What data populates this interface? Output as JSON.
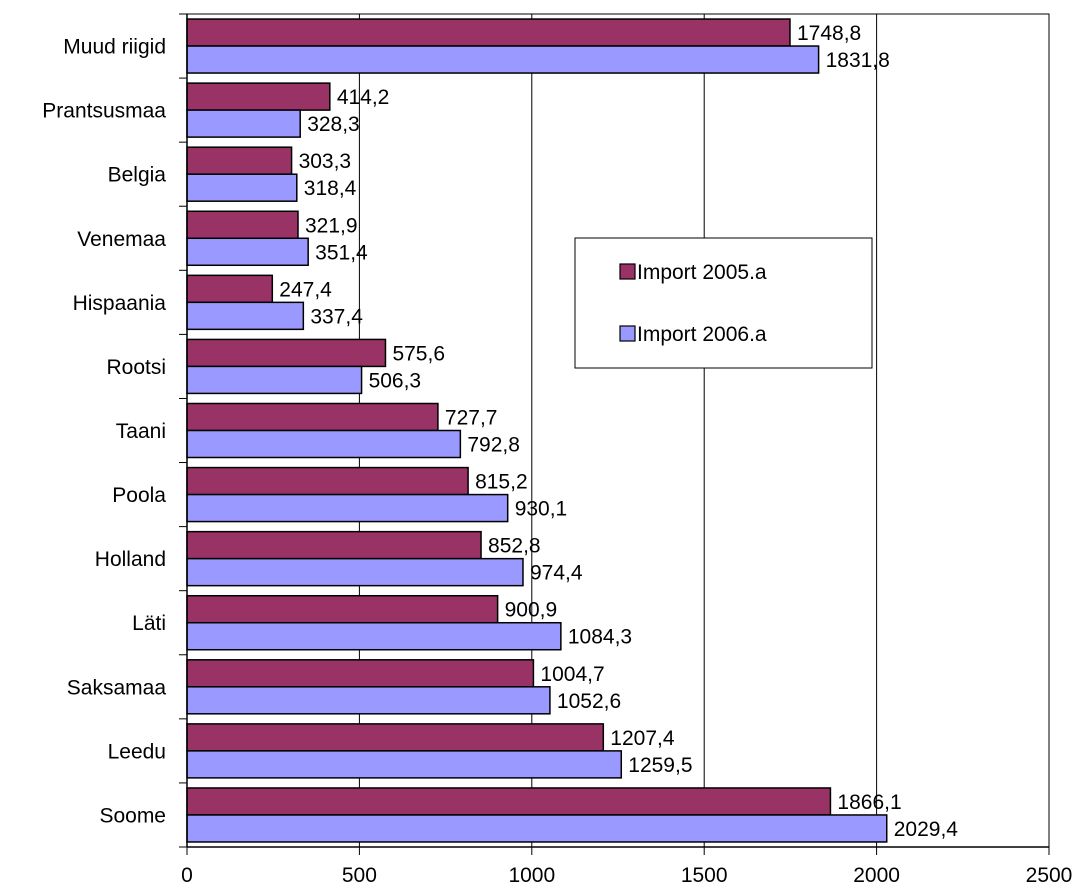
{
  "chart_data": {
    "type": "bar",
    "orientation": "horizontal",
    "categories": [
      "Muud riigid",
      "Prantsusmaa",
      "Belgia",
      "Venemaa",
      "Hispaania",
      "Rootsi",
      "Taani",
      "Poola",
      "Holland",
      "Läti",
      "Saksamaa",
      "Leedu",
      "Soome"
    ],
    "series": [
      {
        "name": "Import 2005.a",
        "color": "#993366",
        "values": [
          1748.8,
          414.2,
          303.3,
          321.9,
          247.4,
          575.6,
          727.7,
          815.2,
          852.8,
          900.9,
          1004.7,
          1207.4,
          1866.1
        ],
        "labels": [
          "1748,8",
          "414,2",
          "303,3",
          "321,9",
          "247,4",
          "575,6",
          "727,7",
          "815,2",
          "852,8",
          "900,9",
          "1004,7",
          "1207,4",
          "1866,1"
        ]
      },
      {
        "name": "Import 2006.a",
        "color": "#9999ff",
        "values": [
          1831.8,
          328.3,
          318.4,
          351.4,
          337.4,
          506.3,
          792.8,
          930.1,
          974.4,
          1084.3,
          1052.6,
          1259.5,
          2029.4
        ],
        "labels": [
          "1831,8",
          "328,3",
          "318,4",
          "351,4",
          "337,4",
          "506,3",
          "792,8",
          "930,1",
          "974,4",
          "1084,3",
          "1052,6",
          "1259,5",
          "2029,4"
        ]
      }
    ],
    "xlim": [
      0,
      2500
    ],
    "xticks": [
      0,
      500,
      1000,
      1500,
      2000,
      2500
    ],
    "xtick_labels": [
      "0",
      "500",
      "1000",
      "1500",
      "2000",
      "2500"
    ],
    "grid": true,
    "legend_position": "right-middle"
  }
}
